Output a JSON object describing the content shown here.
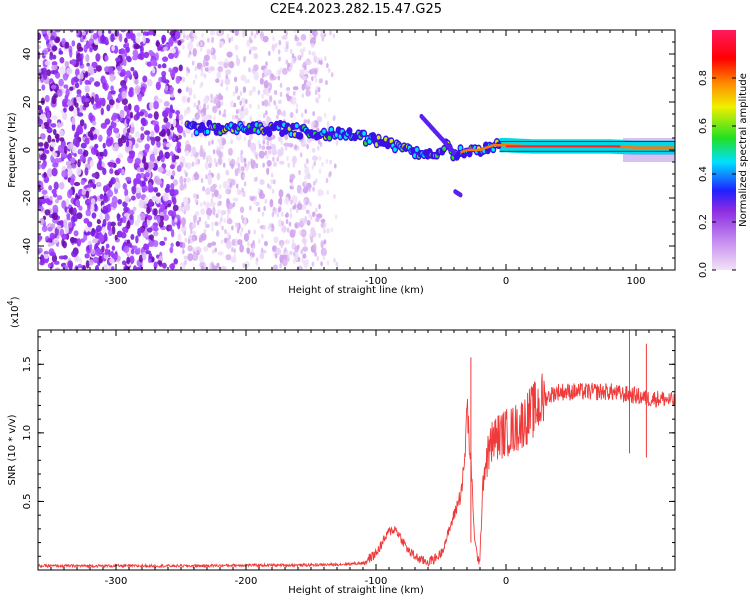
{
  "title": "C2E4.2023.282.15.47.G25",
  "chart_data": [
    {
      "type": "heatmap",
      "xlabel": "Height of straight line (km)",
      "ylabel": "Frequency (Hz)",
      "xlim": [
        -360,
        130
      ],
      "ylim": [
        -50,
        50
      ],
      "x_ticks": [
        -300,
        -200,
        -100,
        0,
        100
      ],
      "y_ticks": [
        -40,
        -20,
        0,
        20,
        40
      ],
      "colorbar": {
        "label": "Normalized spectral amplitude",
        "range": [
          0,
          1
        ],
        "ticks": [
          0.0,
          0.2,
          0.4,
          0.6,
          0.8
        ],
        "tick_labels": [
          "0.0",
          "0.2",
          "0.4",
          "0.6",
          "0.8"
        ],
        "colors": [
          "#f3e2f7",
          "#9b30ff",
          "#1a1aff",
          "#00e5ff",
          "#22e022",
          "#f0f000",
          "#ff8800",
          "#ff0000",
          "#ff1a60"
        ]
      },
      "ridge": {
        "x": [
          -245,
          -230,
          -210,
          -190,
          -170,
          -150,
          -130,
          -110,
          -90,
          -80,
          -70,
          -60,
          -50,
          -45,
          -40,
          -30,
          -20,
          -10,
          0,
          20,
          40,
          60,
          80,
          100,
          130
        ],
        "y": [
          9,
          9,
          9,
          9,
          9,
          7,
          7,
          5,
          3,
          1,
          -1,
          -3,
          0,
          3,
          -2,
          0,
          0,
          2,
          2,
          1.5,
          1.5,
          1.5,
          1.5,
          1,
          1
        ]
      }
    },
    {
      "type": "line",
      "xlabel": "Height of straight line (km)",
      "ylabel": "SNR (10 * v/v)",
      "y_multiplier": "(x10",
      "y_multiplier_exp": "4",
      "y_multiplier_close": ")",
      "xlim": [
        -360,
        130
      ],
      "ylim": [
        0,
        1.75
      ],
      "x_ticks": [
        -300,
        -200,
        -100,
        0
      ],
      "x_tick_labels": [
        "-300",
        "-200",
        "-100",
        "0"
      ],
      "y_ticks": [
        0.5,
        1.0,
        1.5
      ],
      "y_tick_labels": [
        "0.5",
        "1.0",
        "1.5"
      ],
      "color": "#f03a3a",
      "series": [
        {
          "x": [
            -360,
            -300,
            -240,
            -200,
            -160,
            -130,
            -110,
            -100,
            -95,
            -90,
            -85,
            -80,
            -75,
            -70,
            -65,
            -60,
            -55,
            -50,
            -45,
            -40,
            -35,
            -32,
            -30,
            -28,
            -26,
            -24,
            -22,
            -20,
            -18,
            -15,
            -12,
            -10,
            -5,
            0,
            5,
            10,
            15,
            20,
            25,
            30,
            35,
            40,
            50,
            60,
            70,
            80,
            90,
            95,
            100,
            105,
            108,
            110,
            120,
            130
          ],
          "y": [
            0.03,
            0.03,
            0.03,
            0.035,
            0.035,
            0.04,
            0.05,
            0.12,
            0.2,
            0.28,
            0.3,
            0.22,
            0.14,
            0.1,
            0.07,
            0.06,
            0.08,
            0.12,
            0.25,
            0.4,
            0.55,
            0.75,
            1.2,
            0.9,
            0.6,
            0.2,
            0.1,
            0.05,
            0.65,
            0.8,
            0.9,
            0.95,
            0.98,
            1.0,
            1.02,
            1.05,
            1.1,
            1.15,
            1.2,
            1.25,
            1.28,
            1.3,
            1.3,
            1.3,
            1.3,
            1.3,
            1.28,
            1.28,
            1.27,
            1.26,
            1.25,
            1.25,
            1.25,
            1.23
          ]
        }
      ]
    }
  ]
}
